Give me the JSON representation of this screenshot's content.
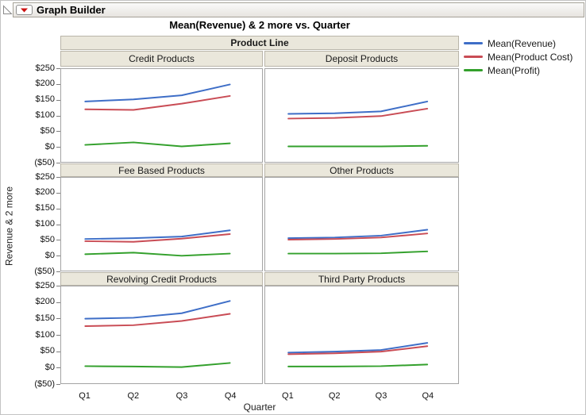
{
  "window": {
    "title": "Graph Builder",
    "icons": {
      "outline_toggle": "disclosure-triangle",
      "menu": "red-triangle-dropdown"
    },
    "menu_color": "#cc1111"
  },
  "chart_data": {
    "type": "line",
    "title": "Mean(Revenue) & 2 more vs. Quarter",
    "facet_by": "Product Line",
    "xlabel": "Quarter",
    "ylabel": "Revenue & 2 more",
    "x": [
      "Q1",
      "Q2",
      "Q3",
      "Q4"
    ],
    "ylim": [
      -50,
      250
    ],
    "ytick_values": [
      250,
      200,
      150,
      100,
      50,
      0,
      -50
    ],
    "yticks": [
      "$250",
      "$200",
      "$150",
      "$100",
      "$50",
      "$0",
      "($50)"
    ],
    "grid": false,
    "legend_position": "top-right",
    "series": [
      {
        "name": "Mean(Revenue)",
        "color": "#3e6ec7"
      },
      {
        "name": "Mean(Product Cost)",
        "color": "#c94c55"
      },
      {
        "name": "Mean(Profit)",
        "color": "#33a02c"
      }
    ],
    "panels": [
      {
        "label": "Credit Products",
        "series_values": [
          [
            145,
            152,
            165,
            200
          ],
          [
            120,
            118,
            138,
            163
          ],
          [
            5,
            13,
            0,
            10
          ]
        ]
      },
      {
        "label": "Deposit Products",
        "series_values": [
          [
            105,
            107,
            113,
            145
          ],
          [
            90,
            92,
            98,
            122
          ],
          [
            0,
            0,
            0,
            2
          ]
        ]
      },
      {
        "label": "Fee Based Products",
        "series_values": [
          [
            52,
            55,
            60,
            80
          ],
          [
            45,
            43,
            53,
            68
          ],
          [
            3,
            8,
            -2,
            5
          ]
        ]
      },
      {
        "label": "Other Products",
        "series_values": [
          [
            55,
            57,
            63,
            82
          ],
          [
            50,
            52,
            57,
            70
          ],
          [
            5,
            5,
            6,
            12
          ]
        ]
      },
      {
        "label": "Revolving Credit Products",
        "series_values": [
          [
            150,
            153,
            167,
            205
          ],
          [
            127,
            130,
            143,
            165
          ],
          [
            3,
            2,
            0,
            13
          ]
        ]
      },
      {
        "label": "Third Party Products",
        "series_values": [
          [
            45,
            48,
            53,
            75
          ],
          [
            40,
            43,
            48,
            65
          ],
          [
            2,
            2,
            3,
            8
          ]
        ]
      }
    ]
  }
}
